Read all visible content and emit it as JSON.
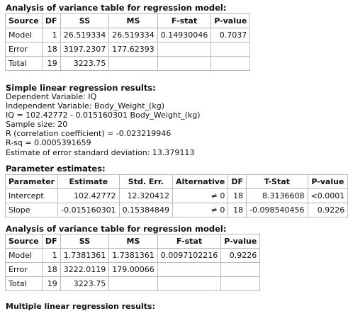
{
  "anova1": {
    "title": "Analysis of variance table for regression model:",
    "headers": [
      "Source",
      "DF",
      "SS",
      "MS",
      "F-stat",
      "P-value"
    ],
    "rows": [
      [
        "Model",
        "1",
        "26.519334",
        "26.519334",
        "0.14930046",
        "0.7037"
      ],
      [
        "Error",
        "18",
        "3197.2307",
        "177.62393",
        "",
        ""
      ],
      [
        "Total",
        "19",
        "3223.75",
        "",
        "",
        ""
      ]
    ]
  },
  "simple": {
    "title": "Simple linear regression results:",
    "lines": [
      "Dependent Variable: IQ",
      "Independent Variable: Body_Weight_(kg)",
      "IQ = 102.42772 - 0.015160301 Body_Weight_(kg)",
      "Sample size: 20",
      "R (correlation coefficient) = -0.023219946",
      "R-sq = 0.0005391659",
      "Estimate of error standard deviation: 13.379113"
    ]
  },
  "params": {
    "title": "Parameter estimates:",
    "headers": [
      "Parameter",
      "Estimate",
      "Std. Err.",
      "Alternative",
      "DF",
      "T-Stat",
      "P-value"
    ],
    "rows": [
      [
        "Intercept",
        "102.42772",
        "12.320412",
        "≠ 0",
        "18",
        "8.3136608",
        "<0.0001"
      ],
      [
        "Slope",
        "-0.015160301",
        "0.15384849",
        "≠ 0",
        "18",
        "-0.098540456",
        "0.9226"
      ]
    ]
  },
  "anova2": {
    "title": "Analysis of variance table for regression model:",
    "headers": [
      "Source",
      "DF",
      "SS",
      "MS",
      "F-stat",
      "P-value"
    ],
    "rows": [
      [
        "Model",
        "1",
        "1.7381361",
        "1.7381361",
        "0.0097102216",
        "0.9226"
      ],
      [
        "Error",
        "18",
        "3222.0119",
        "179.00066",
        "",
        ""
      ],
      [
        "Total",
        "19",
        "3223.75",
        "",
        "",
        ""
      ]
    ]
  },
  "next_title": "Multiple linear regression results:"
}
